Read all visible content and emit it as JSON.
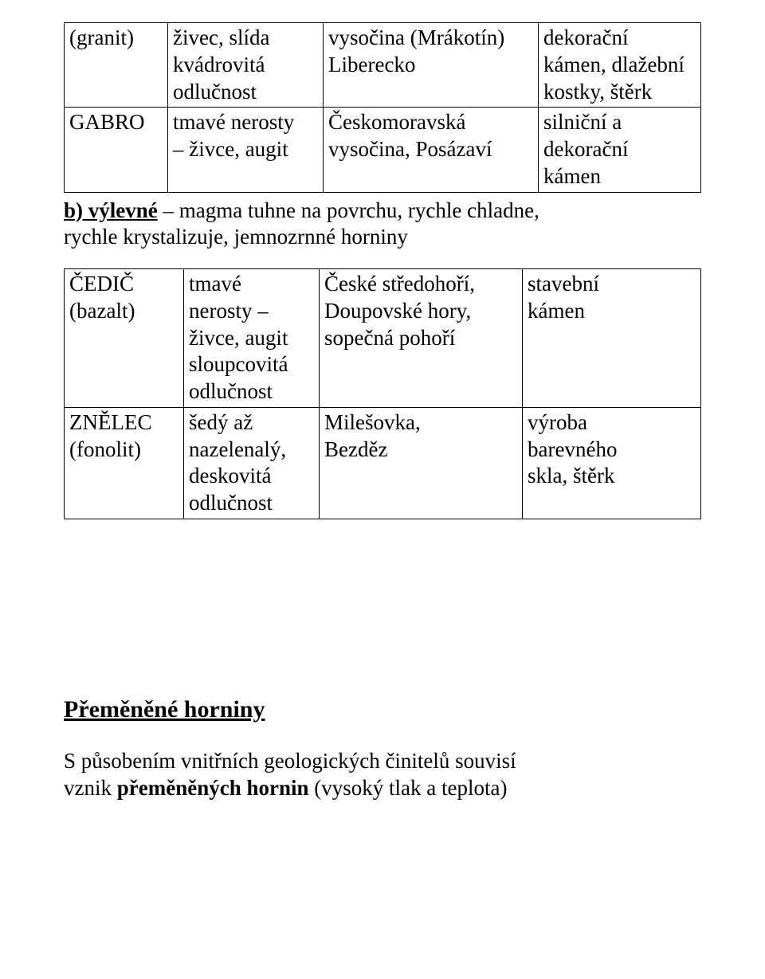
{
  "colors": {
    "text": "#000000",
    "background": "#ffffff",
    "border": "#000000"
  },
  "typography": {
    "font_family": "Times New Roman",
    "body_fontsize_pt": 20,
    "heading_fontsize_pt": 22
  },
  "table1": {
    "rows": [
      {
        "c1_line1": "(granit)",
        "c2_line1": "živec, slída",
        "c2_line2": "kvádrovitá",
        "c2_line3": "odlučnost",
        "c3_line1": "vysočina (Mrákotín)",
        "c3_line2": "Liberecko",
        "c4_line1": "dekorační",
        "c4_line2": "kámen, dlažební",
        "c4_line3": "kostky, štěrk"
      },
      {
        "c1_line1": "GABRO",
        "c2_line1": "tmavé nerosty",
        "c2_line2": "– živce, augit",
        "c3_line1": "Českomoravská",
        "c3_line2": "vysočina, Posázaví",
        "c4_line1": "silniční a",
        "c4_line2": "dekorační",
        "c4_line3": "kámen"
      }
    ]
  },
  "sectionB": {
    "lead": "b) výlevné",
    "rest_line1": " – magma tuhne na povrchu, rychle chladne,",
    "rest_line2": "rychle krystalizuje, jemnozrnné horniny"
  },
  "table2": {
    "rows": [
      {
        "c1_line1": "ČEDIČ",
        "c1_line2": "(bazalt)",
        "c2_line1": "tmavé",
        "c2_line2": "nerosty –",
        "c2_line3": "živce, augit",
        "c2_line4": "sloupcovitá",
        "c2_line5": "odlučnost",
        "c3_line1": "České středohoří,",
        "c3_line2": "Doupovské hory,",
        "c3_line3": "sopečná pohoří",
        "c4_line1": "stavební",
        "c4_line2": "kámen"
      },
      {
        "c1_line1": "ZNĚLEC",
        "c1_line2": "(fonolit)",
        "c2_line1": "šedý až",
        "c2_line2": "nazelenalý,",
        "c2_line3": "deskovitá",
        "c2_line4": "odlučnost",
        "c3_line1": "Milešovka,",
        "c3_line2": "Bezděz",
        "c4_line1": "výroba",
        "c4_line2": "barevného",
        "c4_line3": "skla, štěrk"
      }
    ]
  },
  "heading2": "Přeměněné horniny",
  "para2": {
    "line1_part1": "S působením vnitřních geologických činitelů souvisí",
    "line2_pre": "vznik ",
    "line2_bold": "přeměněných hornin",
    "line2_post": " (vysoký tlak a teplota)"
  }
}
